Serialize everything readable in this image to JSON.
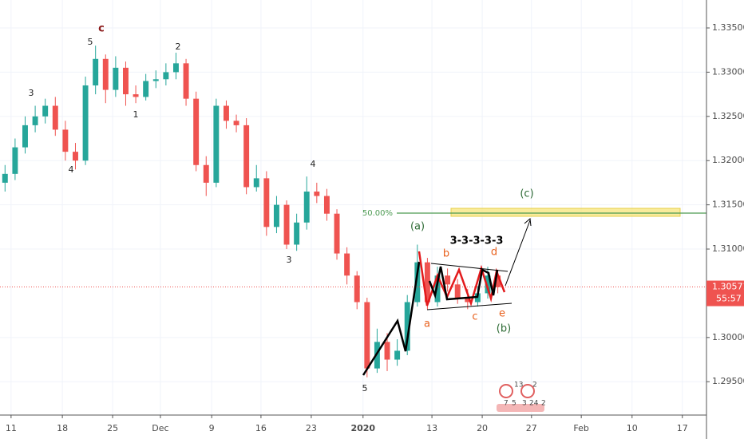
{
  "chart_data": {
    "type": "candlestick",
    "x": [
      0.1,
      0.3,
      0.5,
      0.7,
      0.9,
      1.1,
      1.3,
      1.5,
      1.7,
      1.9,
      2.1,
      2.3,
      2.5,
      2.7,
      2.9,
      3.1,
      3.3,
      3.5,
      3.7,
      3.9,
      4.1,
      4.3,
      4.5,
      4.7,
      4.9,
      5.1,
      5.3,
      5.5,
      5.7,
      5.9,
      6.1,
      6.3,
      6.5,
      6.7,
      6.9,
      7.1,
      7.3,
      7.5,
      7.7,
      7.9,
      8.1,
      8.3,
      8.5,
      8.7,
      8.9,
      9.1,
      9.3,
      9.5,
      9.7,
      9.9
    ],
    "open": [
      1.3175,
      1.3185,
      1.3215,
      1.324,
      1.325,
      1.3262,
      1.3235,
      1.321,
      1.32,
      1.3285,
      1.3315,
      1.328,
      1.3305,
      1.3275,
      1.3272,
      1.329,
      1.3292,
      1.33,
      1.331,
      1.327,
      1.3195,
      1.3175,
      1.3262,
      1.3245,
      1.324,
      1.317,
      1.318,
      1.3125,
      1.315,
      1.3105,
      1.313,
      1.3165,
      1.316,
      1.314,
      1.3095,
      1.307,
      1.304,
      1.2965,
      1.2995,
      1.2975,
      1.2985,
      1.304,
      1.3085,
      1.304,
      1.307,
      1.306,
      1.3045,
      1.304,
      1.305,
      1.307
    ],
    "high": [
      1.3195,
      1.3225,
      1.325,
      1.3262,
      1.327,
      1.3272,
      1.3245,
      1.322,
      1.3295,
      1.333,
      1.332,
      1.3318,
      1.3312,
      1.3285,
      1.3298,
      1.3302,
      1.331,
      1.3322,
      1.3315,
      1.3278,
      1.3205,
      1.327,
      1.3268,
      1.3252,
      1.3248,
      1.3195,
      1.3188,
      1.316,
      1.3155,
      1.314,
      1.3182,
      1.3175,
      1.3168,
      1.3145,
      1.3102,
      1.3075,
      1.3045,
      1.301,
      1.3005,
      1.2998,
      1.3048,
      1.3105,
      1.309,
      1.308,
      1.3078,
      1.3066,
      1.3055,
      1.3058,
      1.308,
      1.3075
    ],
    "low": [
      1.3165,
      1.3178,
      1.3208,
      1.3232,
      1.3242,
      1.3228,
      1.32,
      1.319,
      1.3195,
      1.3275,
      1.3265,
      1.3272,
      1.3262,
      1.3265,
      1.3268,
      1.3282,
      1.3285,
      1.3292,
      1.3262,
      1.3188,
      1.316,
      1.317,
      1.3236,
      1.3232,
      1.3162,
      1.3165,
      1.3115,
      1.3118,
      1.31,
      1.3098,
      1.3122,
      1.3152,
      1.3132,
      1.3088,
      1.306,
      1.3032,
      1.2955,
      1.296,
      1.2962,
      1.2968,
      1.298,
      1.3035,
      1.3032,
      1.3035,
      1.3052,
      1.3038,
      1.3032,
      1.3035,
      1.3044,
      1.305
    ],
    "close": [
      1.3185,
      1.3215,
      1.324,
      1.325,
      1.3262,
      1.3235,
      1.321,
      1.32,
      1.3285,
      1.3315,
      1.328,
      1.3305,
      1.3275,
      1.3272,
      1.329,
      1.3292,
      1.33,
      1.331,
      1.327,
      1.3195,
      1.3175,
      1.3262,
      1.3245,
      1.324,
      1.317,
      1.318,
      1.3125,
      1.315,
      1.3105,
      1.313,
      1.3165,
      1.316,
      1.314,
      1.3095,
      1.307,
      1.304,
      1.2965,
      1.2995,
      1.2975,
      1.2985,
      1.304,
      1.3085,
      1.304,
      1.307,
      1.306,
      1.3045,
      1.304,
      1.305,
      1.307,
      1.3057
    ],
    "up_color": "#26a69a",
    "down_color": "#ef5350",
    "xlim": [
      0,
      14.05
    ],
    "xticks": [
      {
        "value": 0.22,
        "label": "11"
      },
      {
        "value": 1.24,
        "label": "18"
      },
      {
        "value": 2.24,
        "label": "25"
      },
      {
        "value": 3.19,
        "label": "Dec"
      },
      {
        "value": 4.21,
        "label": "9"
      },
      {
        "value": 5.19,
        "label": "16"
      },
      {
        "value": 6.19,
        "label": "23"
      },
      {
        "value": 7.22,
        "label": "2020"
      },
      {
        "value": 8.59,
        "label": "13"
      },
      {
        "value": 9.59,
        "label": "20"
      },
      {
        "value": 10.57,
        "label": "27"
      },
      {
        "value": 11.56,
        "label": "Feb"
      },
      {
        "value": 12.57,
        "label": "10"
      },
      {
        "value": 13.57,
        "label": "17"
      }
    ],
    "ylim": [
      1.29123,
      1.33816
    ],
    "yticks": [
      {
        "value": 1.335,
        "label": "1.33500"
      },
      {
        "value": 1.33,
        "label": "1.33000"
      },
      {
        "value": 1.325,
        "label": "1.32500"
      },
      {
        "value": 1.32,
        "label": "1.32000"
      },
      {
        "value": 1.315,
        "label": "1.31500"
      },
      {
        "value": 1.31,
        "label": "1.31000"
      },
      {
        "value": 1.3,
        "label": "1.30000"
      },
      {
        "value": 1.295,
        "label": "1.29500"
      }
    ],
    "grid": true,
    "last_price": 1.30571,
    "countdown": "55:57",
    "annotations": [
      "c",
      "5",
      "3",
      "4",
      "1",
      "2",
      "4",
      "3",
      "5",
      "(a)",
      "b",
      "a",
      "c",
      "d",
      "e",
      "(b)",
      "(c)",
      "3-3-3-3-3",
      "50.00%"
    ],
    "events": [
      "13",
      "2",
      "7",
      "5",
      "3",
      "24",
      "2"
    ]
  }
}
